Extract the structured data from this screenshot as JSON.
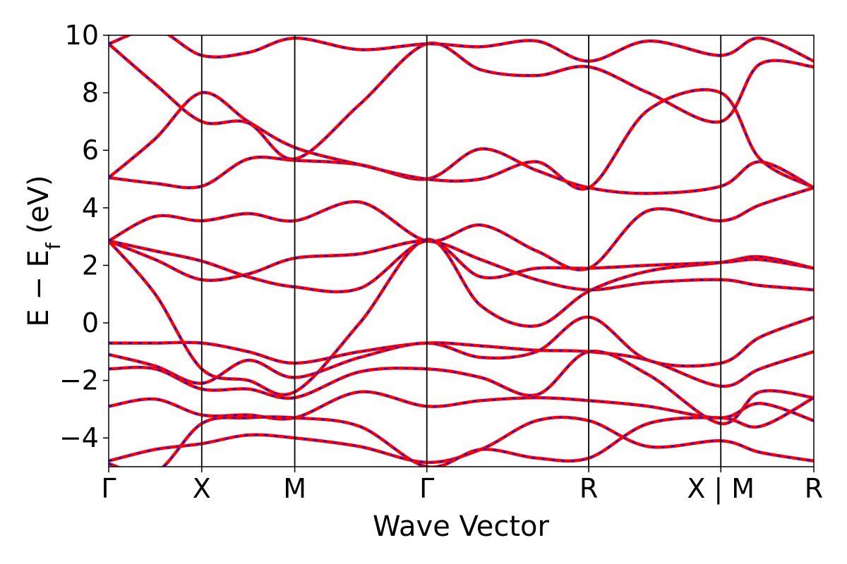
{
  "chart_data": {
    "type": "line",
    "xlabel": "Wave Vector",
    "ylabel": "E − E",
    "ylabel_subscript": "f",
    "ylabel_unit": " (eV)",
    "ylim": [
      -5,
      10
    ],
    "yticks": [
      -4,
      -2,
      0,
      2,
      4,
      6,
      8,
      10
    ],
    "ytick_labels": [
      "−4",
      "−2",
      "0",
      "2",
      "4",
      "6",
      "8",
      "10"
    ],
    "grid": false,
    "legend": "none",
    "colors": {
      "band_primary": "#ff0000",
      "band_secondary": "#0000ff",
      "kpath_line": "#000000"
    },
    "kpoints": [
      {
        "label": "Γ",
        "x": 0.0
      },
      {
        "label": "X",
        "x": 0.5
      },
      {
        "label": "M",
        "x": 1.0
      },
      {
        "label": "Γ",
        "x": 1.71
      },
      {
        "label": "R",
        "x": 2.58
      },
      {
        "label": "X | M",
        "x": 3.29
      },
      {
        "label": "R",
        "x": 3.79
      }
    ],
    "xlim": [
      0,
      3.79
    ],
    "series": [
      {
        "x": [
          0,
          0.25,
          0.5,
          0.75,
          1.0,
          1.35,
          1.71,
          2.0,
          2.3,
          2.58,
          2.9,
          3.29,
          3.5,
          3.79
        ],
        "y": [
          -0.7,
          -0.7,
          -0.7,
          -1.0,
          -1.4,
          -1.0,
          -0.7,
          -0.8,
          -0.95,
          -1.0,
          -1.3,
          -2.2,
          -1.6,
          -1.0
        ]
      },
      {
        "x": [
          0,
          0.25,
          0.5,
          0.75,
          1.0,
          1.35,
          1.71,
          2.0,
          2.3,
          2.58,
          2.9,
          3.29,
          3.5,
          3.79
        ],
        "y": [
          -1.1,
          -1.5,
          -2.1,
          -1.3,
          -1.9,
          -1.2,
          -0.7,
          -1.2,
          -1.0,
          0.2,
          -1.3,
          -1.4,
          -0.5,
          0.2
        ]
      },
      {
        "x": [
          0,
          0.25,
          0.5,
          0.75,
          1.0,
          1.35,
          1.71,
          2.0,
          2.3,
          2.58,
          2.9,
          3.29,
          3.5,
          3.79
        ],
        "y": [
          -1.6,
          -1.6,
          -2.3,
          -2.3,
          -2.6,
          -1.7,
          -1.6,
          -1.9,
          -2.5,
          -1.0,
          -1.8,
          -3.5,
          -2.4,
          -2.6
        ]
      },
      {
        "x": [
          0,
          0.25,
          0.5,
          0.75,
          1.0,
          1.35,
          1.71,
          2.0,
          2.3,
          2.58,
          2.9,
          3.29,
          3.5,
          3.79
        ],
        "y": [
          -2.9,
          -2.65,
          -3.2,
          -3.2,
          -3.3,
          -2.4,
          -2.9,
          -2.7,
          -2.6,
          -2.7,
          -2.9,
          -3.3,
          -2.8,
          -3.4
        ]
      },
      {
        "x": [
          0,
          0.25,
          0.5,
          0.75,
          1.0,
          1.35,
          1.71,
          2.0,
          2.3,
          2.58,
          2.9,
          3.29,
          3.5,
          3.79
        ],
        "y": [
          -4.8,
          -4.4,
          -4.2,
          -3.9,
          -4.0,
          -4.3,
          -4.85,
          -4.4,
          -3.4,
          -3.4,
          -4.3,
          -4.1,
          -4.5,
          -4.8
        ]
      },
      {
        "x": [
          0,
          0.25,
          0.5,
          0.75,
          1.0,
          1.35,
          1.71,
          2.0,
          2.3,
          2.58,
          2.9,
          3.29,
          3.5,
          3.79
        ],
        "y": [
          -4.9,
          -5.2,
          -3.5,
          -3.3,
          -3.3,
          -3.6,
          -5.0,
          -4.4,
          -4.7,
          -4.7,
          -3.5,
          -3.3,
          -3.6,
          -2.6
        ]
      },
      {
        "x": [
          0,
          0.25,
          0.5,
          0.75,
          1.0,
          1.35,
          1.71,
          2.0,
          2.3,
          2.58,
          2.9,
          3.29,
          3.5,
          3.79
        ],
        "y": [
          2.85,
          1.0,
          -1.6,
          -2.0,
          -2.4,
          0.0,
          2.9,
          0.6,
          -0.1,
          1.1,
          1.8,
          2.1,
          2.3,
          1.9
        ]
      },
      {
        "x": [
          0,
          0.25,
          0.5,
          0.75,
          1.0,
          1.35,
          1.71,
          2.0,
          2.3,
          2.58,
          2.9,
          3.29,
          3.5,
          3.79
        ],
        "y": [
          2.85,
          2.2,
          1.5,
          1.7,
          2.25,
          2.4,
          2.85,
          2.2,
          1.5,
          1.15,
          1.4,
          1.5,
          1.3,
          1.15
        ]
      },
      {
        "x": [
          0,
          0.25,
          0.5,
          0.75,
          1.0,
          1.35,
          1.71,
          2.0,
          2.3,
          2.58,
          2.9,
          3.29,
          3.5,
          3.79
        ],
        "y": [
          2.85,
          2.5,
          2.15,
          1.6,
          1.25,
          1.2,
          2.85,
          1.6,
          1.9,
          1.9,
          2.0,
          2.1,
          2.2,
          1.9
        ]
      },
      {
        "x": [
          0,
          0.25,
          0.5,
          0.75,
          1.0,
          1.35,
          1.71,
          2.0,
          2.3,
          2.58,
          2.9,
          3.29,
          3.5,
          3.79
        ],
        "y": [
          2.85,
          3.7,
          3.55,
          3.8,
          3.55,
          4.2,
          2.85,
          3.4,
          2.5,
          1.9,
          3.9,
          3.55,
          4.1,
          4.7
        ]
      },
      {
        "x": [
          0,
          0.25,
          0.5,
          0.75,
          1.0,
          1.35,
          1.71,
          2.0,
          2.3,
          2.58,
          2.9,
          3.29,
          3.5,
          3.79
        ],
        "y": [
          5.05,
          4.85,
          4.75,
          5.7,
          5.65,
          5.5,
          5.0,
          6.05,
          5.3,
          4.7,
          4.5,
          4.75,
          5.6,
          4.7
        ]
      },
      {
        "x": [
          0,
          0.25,
          0.5,
          0.75,
          1.0,
          1.35,
          1.71,
          2.0,
          2.3,
          2.58,
          2.9,
          3.29,
          3.5,
          3.79
        ],
        "y": [
          5.05,
          6.4,
          8.0,
          7.0,
          6.1,
          5.5,
          5.0,
          5.0,
          5.6,
          4.7,
          7.4,
          8.0,
          5.7,
          4.7
        ]
      },
      {
        "x": [
          0,
          0.25,
          0.5,
          0.75,
          1.0,
          1.35,
          1.71,
          2.0,
          2.3,
          2.58,
          2.9,
          3.29,
          3.5,
          3.79
        ],
        "y": [
          9.7,
          8.3,
          7.0,
          6.95,
          5.7,
          7.6,
          9.7,
          8.8,
          8.6,
          8.9,
          8.0,
          7.0,
          9.0,
          8.9
        ]
      },
      {
        "x": [
          0,
          0.25,
          0.5,
          0.75,
          1.0,
          1.35,
          1.71,
          2.0,
          2.3,
          2.58,
          2.9,
          3.29,
          3.5,
          3.79
        ],
        "y": [
          9.7,
          10.2,
          9.3,
          9.4,
          9.9,
          9.5,
          9.7,
          9.6,
          9.8,
          9.1,
          9.8,
          9.3,
          9.9,
          9.1
        ]
      }
    ]
  }
}
